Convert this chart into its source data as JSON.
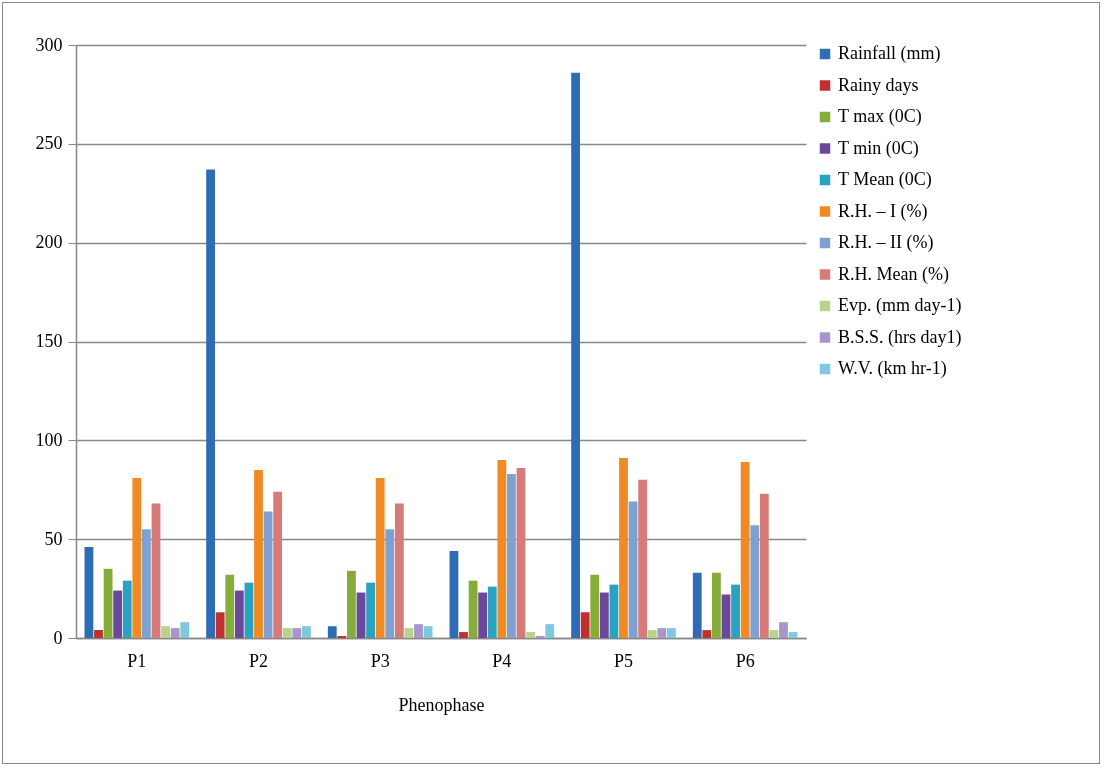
{
  "chart_data": {
    "type": "bar",
    "xlabel": "Phenophase",
    "categories": [
      "P1",
      "P2",
      "P3",
      "P4",
      "P5",
      "P6"
    ],
    "series": [
      {
        "name": "Rainfall (mm)",
        "color": "#2e6db5",
        "values": [
          46,
          237,
          6,
          44,
          286,
          33
        ]
      },
      {
        "name": "Rainy days",
        "color": "#c0302f",
        "values": [
          4,
          13,
          1,
          3,
          13,
          4
        ]
      },
      {
        "name": "T max (0C)",
        "color": "#86ad3a",
        "values": [
          35,
          32,
          34,
          29,
          32,
          33
        ]
      },
      {
        "name": "T min (0C)",
        "color": "#6b489b",
        "values": [
          24,
          24,
          23,
          23,
          23,
          22
        ]
      },
      {
        "name": "T Mean (0C)",
        "color": "#2aa3c1",
        "values": [
          29,
          28,
          28,
          26,
          27,
          27
        ]
      },
      {
        "name": "R.H. – I (%)",
        "color": "#f08a24",
        "values": [
          81,
          85,
          81,
          90,
          91,
          89
        ]
      },
      {
        "name": "R.H. – II (%)",
        "color": "#7fa1d1",
        "values": [
          55,
          64,
          55,
          83,
          69,
          57
        ]
      },
      {
        "name": "R.H. Mean (%)",
        "color": "#d67a7a",
        "values": [
          68,
          74,
          68,
          86,
          80,
          73
        ]
      },
      {
        "name": "Evp. (mm day-1)",
        "color": "#b6d48c",
        "values": [
          6,
          5,
          5,
          3,
          4,
          4
        ]
      },
      {
        "name": "B.S.S. (hrs day1)",
        "color": "#a995c9",
        "values": [
          5,
          5,
          7,
          1,
          5,
          8
        ]
      },
      {
        "name": "W.V. (km hr-1)",
        "color": "#7fc9de",
        "values": [
          8,
          6,
          6,
          7,
          5,
          3
        ]
      }
    ],
    "ylim": [
      0,
      300
    ],
    "yticks": [
      0,
      50,
      100,
      150,
      200,
      250,
      300
    ],
    "grid": "y",
    "legend": "right"
  }
}
